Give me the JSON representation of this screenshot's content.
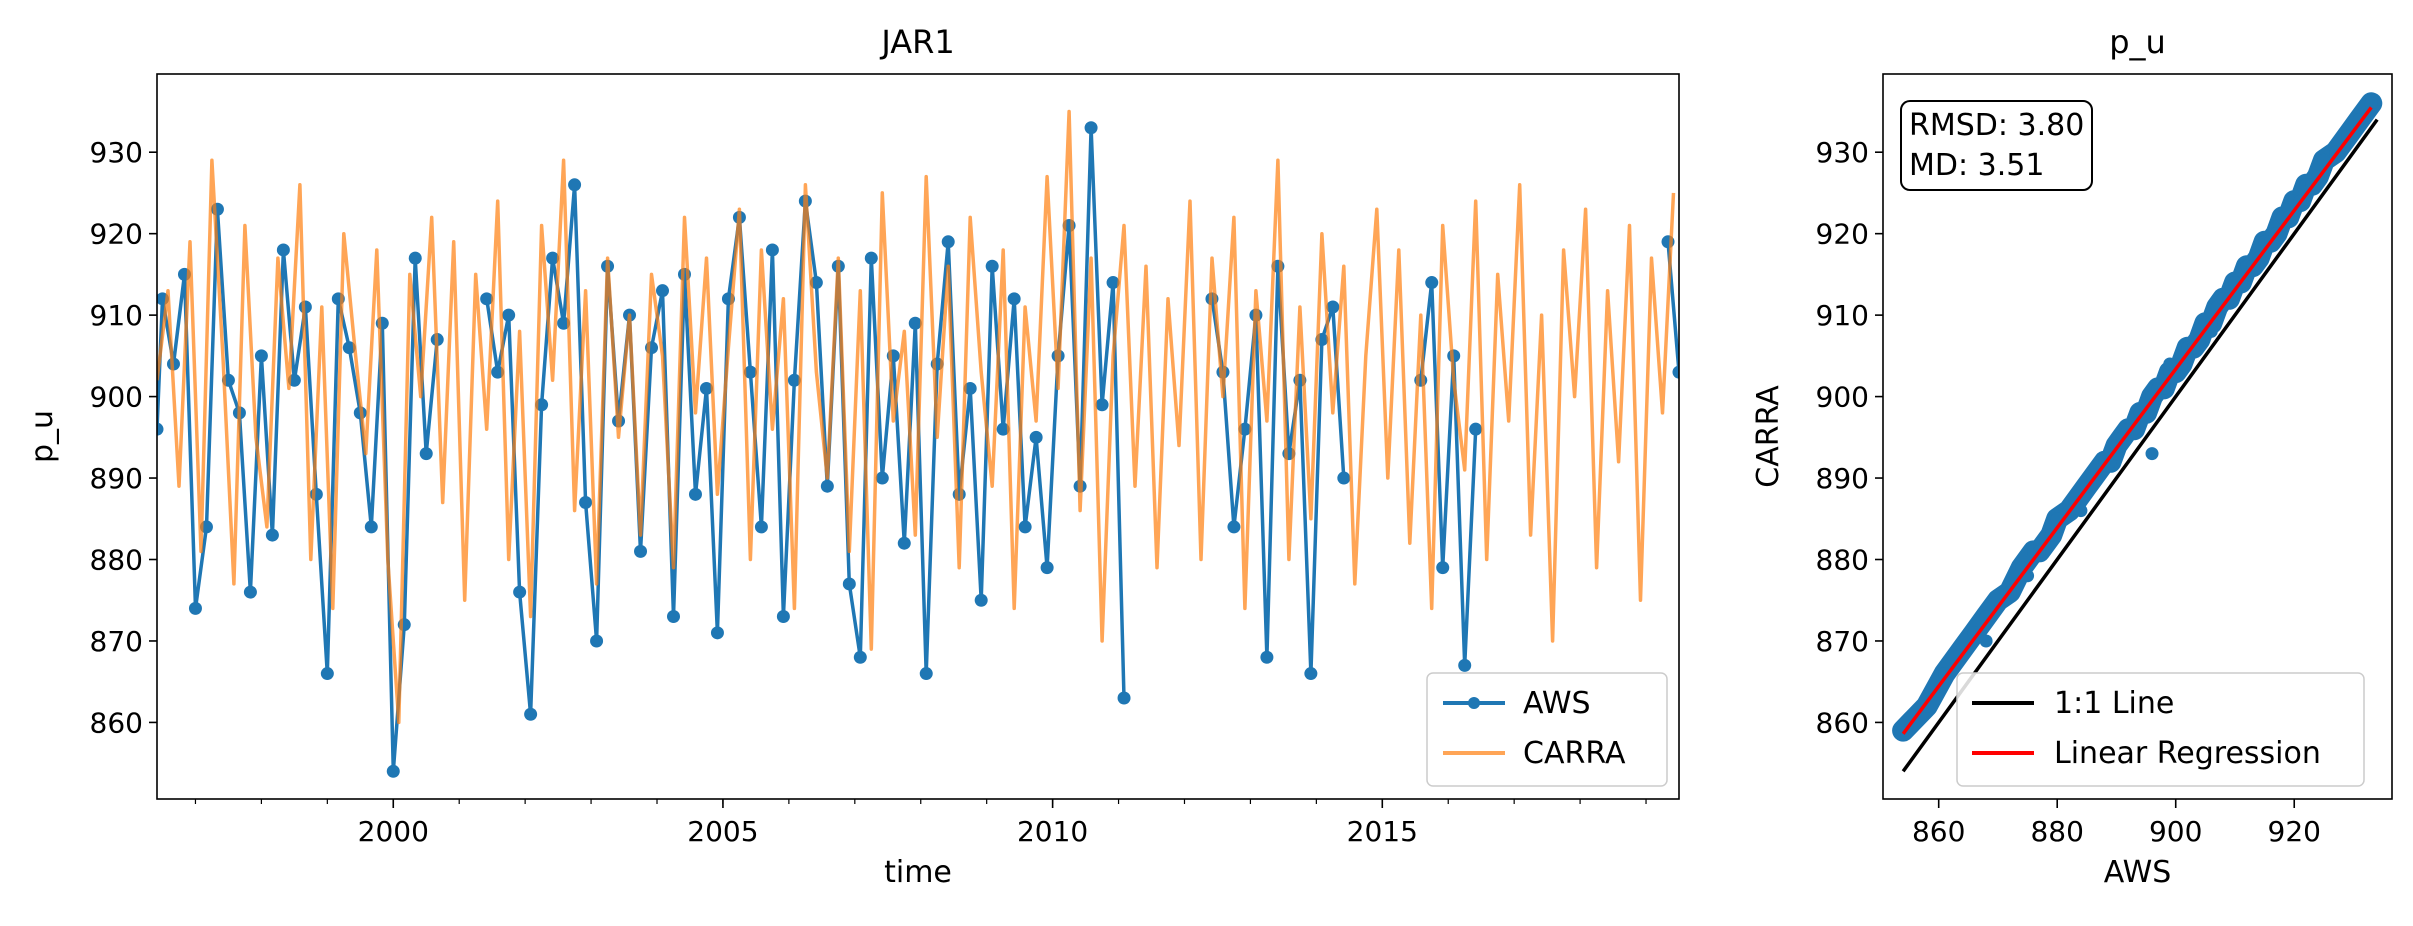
{
  "chart_data": [
    {
      "type": "line",
      "title": "JAR1",
      "xlabel": "time",
      "ylabel": "p_u",
      "xlim": [
        "1996-06-01",
        "2019-07-01"
      ],
      "ylim": [
        850.6,
        939.6
      ],
      "x_ticks": [
        "2000",
        "2005",
        "2010",
        "2015"
      ],
      "y_ticks": [
        860,
        870,
        880,
        890,
        900,
        910,
        920,
        930
      ],
      "grid": false,
      "legend": "lower-right",
      "series": [
        {
          "name": "AWS",
          "color": "#1f77b4",
          "marker": "circle",
          "gaps": [
            [
              "2000-10",
              "2001-05"
            ],
            [
              "2011-03",
              "2012-04"
            ],
            [
              "2014-07",
              "2015-06"
            ],
            [
              "2016-08",
              "2019-03"
            ]
          ],
          "x": [
            "1996-06",
            "1996-07",
            "1996-09",
            "1996-11",
            "1997-01",
            "1997-03",
            "1997-05",
            "1997-07",
            "1997-09",
            "1997-11",
            "1998-01",
            "1998-03",
            "1998-05",
            "1998-07",
            "1998-09",
            "1998-11",
            "1999-01",
            "1999-03",
            "1999-05",
            "1999-07",
            "1999-09",
            "1999-11",
            "2000-01",
            "2000-03",
            "2000-05",
            "2000-07",
            "2000-09",
            "2001-06",
            "2001-08",
            "2001-10",
            "2001-12",
            "2002-02",
            "2002-04",
            "2002-06",
            "2002-08",
            "2002-10",
            "2002-12",
            "2003-02",
            "2003-04",
            "2003-06",
            "2003-08",
            "2003-10",
            "2003-12",
            "2004-02",
            "2004-04",
            "2004-06",
            "2004-08",
            "2004-10",
            "2004-12",
            "2005-02",
            "2005-04",
            "2005-06",
            "2005-08",
            "2005-10",
            "2005-12",
            "2006-02",
            "2006-04",
            "2006-06",
            "2006-08",
            "2006-10",
            "2006-12",
            "2007-02",
            "2007-04",
            "2007-06",
            "2007-08",
            "2007-10",
            "2007-12",
            "2008-02",
            "2008-04",
            "2008-06",
            "2008-08",
            "2008-10",
            "2008-12",
            "2009-02",
            "2009-04",
            "2009-06",
            "2009-08",
            "2009-10",
            "2009-12",
            "2010-02",
            "2010-04",
            "2010-06",
            "2010-08",
            "2010-10",
            "2010-12",
            "2011-02",
            "2012-06",
            "2012-08",
            "2012-10",
            "2012-12",
            "2013-02",
            "2013-04",
            "2013-06",
            "2013-08",
            "2013-10",
            "2013-12",
            "2014-02",
            "2014-04",
            "2014-06",
            "2015-08",
            "2015-10",
            "2015-12",
            "2016-02",
            "2016-04",
            "2016-06",
            "2019-05",
            "2019-07"
          ],
          "y": [
            896,
            912,
            904,
            915,
            874,
            884,
            923,
            902,
            898,
            876,
            905,
            883,
            918,
            902,
            911,
            888,
            866,
            912,
            906,
            898,
            884,
            909,
            854,
            872,
            917,
            893,
            907,
            912,
            903,
            910,
            876,
            861,
            899,
            917,
            909,
            926,
            887,
            870,
            916,
            897,
            910,
            881,
            906,
            913,
            873,
            915,
            888,
            901,
            871,
            912,
            922,
            903,
            884,
            918,
            873,
            902,
            924,
            914,
            889,
            916,
            877,
            868,
            917,
            890,
            905,
            882,
            909,
            866,
            904,
            919,
            888,
            901,
            875,
            916,
            896,
            912,
            884,
            895,
            879,
            905,
            921,
            889,
            933,
            899,
            914,
            863,
            912,
            903,
            884,
            896,
            910,
            868,
            916,
            893,
            902,
            866,
            907,
            911,
            890,
            902,
            914,
            879,
            905,
            867,
            896,
            919,
            903
          ]
        },
        {
          "name": "CARRA",
          "color": "#ff7f0e",
          "x": [
            "1996-06",
            "1996-08",
            "1996-10",
            "1996-12",
            "1997-02",
            "1997-04",
            "1997-06",
            "1997-08",
            "1997-10",
            "1997-12",
            "1998-02",
            "1998-04",
            "1998-06",
            "1998-08",
            "1998-10",
            "1998-12",
            "1999-02",
            "1999-04",
            "1999-06",
            "1999-08",
            "1999-10",
            "1999-12",
            "2000-02",
            "2000-04",
            "2000-06",
            "2000-08",
            "2000-10",
            "2000-12",
            "2001-02",
            "2001-04",
            "2001-06",
            "2001-08",
            "2001-10",
            "2001-12",
            "2002-02",
            "2002-04",
            "2002-06",
            "2002-08",
            "2002-10",
            "2002-12",
            "2003-02",
            "2003-04",
            "2003-06",
            "2003-08",
            "2003-10",
            "2003-12",
            "2004-02",
            "2004-04",
            "2004-06",
            "2004-08",
            "2004-10",
            "2004-12",
            "2005-02",
            "2005-04",
            "2005-06",
            "2005-08",
            "2005-10",
            "2005-12",
            "2006-02",
            "2006-04",
            "2006-06",
            "2006-08",
            "2006-10",
            "2006-12",
            "2007-02",
            "2007-04",
            "2007-06",
            "2007-08",
            "2007-10",
            "2007-12",
            "2008-02",
            "2008-04",
            "2008-06",
            "2008-08",
            "2008-10",
            "2008-12",
            "2009-02",
            "2009-04",
            "2009-06",
            "2009-08",
            "2009-10",
            "2009-12",
            "2010-02",
            "2010-04",
            "2010-06",
            "2010-08",
            "2010-10",
            "2010-12",
            "2011-02",
            "2011-04",
            "2011-06",
            "2011-08",
            "2011-10",
            "2011-12",
            "2012-02",
            "2012-04",
            "2012-06",
            "2012-08",
            "2012-10",
            "2012-12",
            "2013-02",
            "2013-04",
            "2013-06",
            "2013-08",
            "2013-10",
            "2013-12",
            "2014-02",
            "2014-04",
            "2014-06",
            "2014-08",
            "2014-10",
            "2014-12",
            "2015-02",
            "2015-04",
            "2015-06",
            "2015-08",
            "2015-10",
            "2015-12",
            "2016-02",
            "2016-04",
            "2016-06",
            "2016-08",
            "2016-10",
            "2016-12",
            "2017-02",
            "2017-04",
            "2017-06",
            "2017-08",
            "2017-10",
            "2017-12",
            "2018-02",
            "2018-04",
            "2018-06",
            "2018-08",
            "2018-10",
            "2018-12",
            "2019-02",
            "2019-04",
            "2019-06"
          ],
          "y": [
            902,
            913,
            889,
            919,
            881,
            929,
            905,
            877,
            921,
            895,
            884,
            917,
            901,
            926,
            880,
            911,
            874,
            920,
            906,
            893,
            918,
            880,
            860,
            915,
            900,
            922,
            887,
            919,
            875,
            915,
            896,
            924,
            880,
            908,
            873,
            921,
            902,
            929,
            886,
            913,
            877,
            917,
            895,
            910,
            883,
            915,
            905,
            879,
            922,
            898,
            917,
            888,
            906,
            923,
            880,
            918,
            896,
            912,
            874,
            926,
            903,
            890,
            917,
            881,
            913,
            869,
            925,
            897,
            908,
            883,
            927,
            895,
            916,
            879,
            922,
            903,
            889,
            918,
            874,
            911,
            897,
            927,
            901,
            935,
            886,
            917,
            870,
            905,
            921,
            889,
            916,
            879,
            912,
            894,
            924,
            880,
            917,
            900,
            922,
            874,
            913,
            897,
            929,
            880,
            911,
            885,
            920,
            898,
            916,
            877,
            905,
            923,
            890,
            918,
            882,
            910,
            874,
            921,
            902,
            891,
            924,
            880,
            915,
            897,
            926,
            883,
            910,
            870,
            918,
            900,
            923,
            879,
            913,
            892,
            921,
            875,
            917,
            898,
            925
          ]
        }
      ]
    },
    {
      "type": "scatter",
      "title": "p_u",
      "xlabel": "AWS",
      "ylabel": "CARRA",
      "xlim": [
        850.6,
        936.5
      ],
      "ylim": [
        850.6,
        939.6
      ],
      "x_ticks": [
        860,
        880,
        900,
        920
      ],
      "y_ticks": [
        860,
        870,
        880,
        890,
        900,
        910,
        920,
        930
      ],
      "grid": false,
      "legend": "lower-right",
      "annotation": {
        "rmsd": "RMSD: 3.80",
        "md": "MD: 3.51"
      },
      "points": {
        "name": "",
        "color": "#1f77b4",
        "x": [
          854,
          858,
          861,
          864,
          866,
          868,
          870,
          872,
          874,
          876,
          877,
          879,
          880,
          882,
          883,
          885,
          886,
          888,
          889,
          890,
          891,
          892,
          893,
          894,
          895,
          896,
          897,
          898,
          899,
          900,
          901,
          902,
          903,
          904,
          905,
          906,
          907,
          908,
          909,
          910,
          911,
          912,
          913,
          914,
          915,
          916,
          917,
          918,
          919,
          920,
          921,
          922,
          923,
          924,
          925,
          927,
          929,
          931,
          933,
          868,
          875,
          884,
          890,
          899,
          906,
          914,
          921,
          880,
          896,
          910
        ],
        "y": [
          859,
          862,
          866,
          869,
          871,
          873,
          875,
          876,
          879,
          881,
          881,
          883,
          885,
          886,
          887,
          889,
          890,
          892,
          892,
          894,
          895,
          896,
          896,
          898,
          898,
          900,
          901,
          901,
          903,
          903,
          904,
          906,
          906,
          907,
          909,
          909,
          911,
          912,
          912,
          914,
          914,
          916,
          916,
          917,
          919,
          919,
          920,
          922,
          922,
          924,
          924,
          926,
          926,
          927,
          929,
          930,
          932,
          934,
          936,
          870,
          878,
          886,
          893,
          904,
          908,
          917,
          924,
          884,
          893,
          914
        ]
      },
      "lines": [
        {
          "name": "1:1 Line",
          "color": "#000000",
          "x": [
            854,
            934
          ],
          "y": [
            854,
            934
          ]
        },
        {
          "name": "Linear Regression",
          "color": "#ff0000",
          "x": [
            854,
            933
          ],
          "y": [
            858.6,
            935.5
          ]
        }
      ]
    }
  ]
}
